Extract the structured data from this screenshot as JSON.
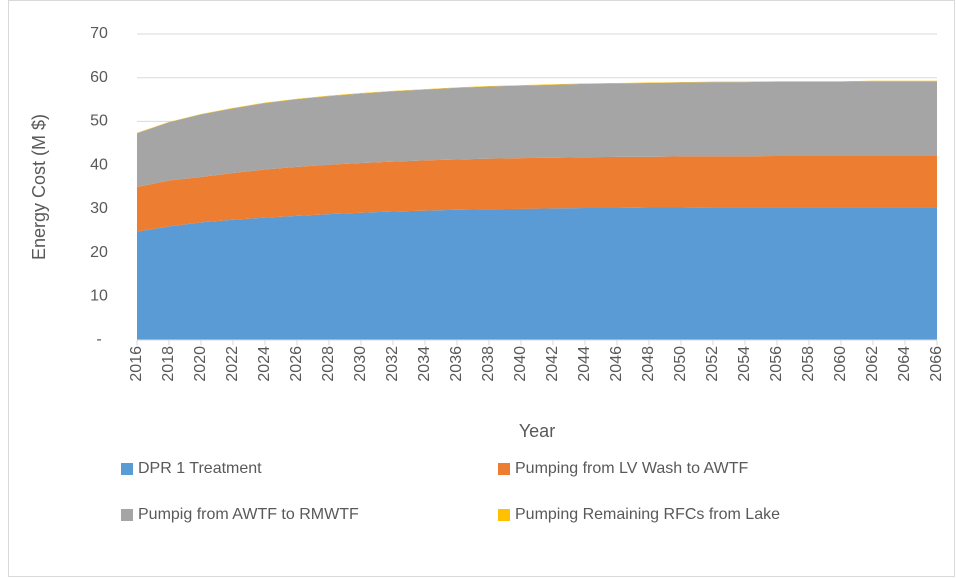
{
  "chart_data": {
    "type": "stacked_area",
    "ylabel": "Energy Cost (M $)",
    "xlabel": "Year",
    "x": [
      2016,
      2018,
      2020,
      2022,
      2024,
      2026,
      2028,
      2030,
      2032,
      2034,
      2036,
      2038,
      2040,
      2042,
      2044,
      2046,
      2048,
      2050,
      2052,
      2054,
      2056,
      2058,
      2060,
      2062,
      2064,
      2066
    ],
    "xlim": [
      2016,
      2066
    ],
    "xticks": [
      2016,
      2018,
      2020,
      2022,
      2024,
      2026,
      2028,
      2030,
      2032,
      2034,
      2036,
      2038,
      2040,
      2042,
      2044,
      2046,
      2048,
      2050,
      2052,
      2054,
      2056,
      2058,
      2060,
      2062,
      2064,
      2066
    ],
    "ylim": [
      0,
      70
    ],
    "yticks": [
      {
        "value": 0,
        "label": "-"
      },
      10,
      20,
      30,
      40,
      50,
      60,
      70
    ],
    "grid": true,
    "legend": "bottom",
    "series": [
      {
        "name": "DPR 1 Treatment",
        "color": "#5b9bd5",
        "values": [
          24.8,
          26.0,
          26.9,
          27.5,
          28.0,
          28.4,
          28.8,
          29.1,
          29.4,
          29.6,
          29.8,
          29.9,
          30.0,
          30.1,
          30.2,
          30.2,
          30.3,
          30.3,
          30.4,
          30.4,
          30.4,
          30.4,
          30.4,
          30.4,
          30.4,
          30.4
        ]
      },
      {
        "name": "Pumping from LV Wash to AWTF",
        "color": "#ed7d31",
        "values": [
          10.2,
          10.5,
          10.4,
          10.7,
          11.0,
          11.2,
          11.3,
          11.4,
          11.4,
          11.5,
          11.5,
          11.6,
          11.6,
          11.6,
          11.6,
          11.7,
          11.6,
          11.7,
          11.6,
          11.6,
          11.7,
          11.7,
          11.7,
          11.7,
          11.7,
          11.7
        ]
      },
      {
        "name": "Pumpig from AWTF to RMWTF",
        "color": "#a5a5a5",
        "values": [
          12.3,
          13.3,
          14.3,
          14.8,
          15.2,
          15.5,
          15.7,
          15.9,
          16.1,
          16.2,
          16.4,
          16.5,
          16.6,
          16.7,
          16.8,
          16.8,
          16.9,
          16.9,
          17.0,
          17.0,
          17.0,
          17.0,
          17.0,
          17.1,
          17.1,
          17.1
        ]
      },
      {
        "name": "Pumping Remaining RFCs from Lake",
        "color": "#ffc000",
        "values": [
          0.1,
          0.1,
          0.1,
          0.1,
          0.1,
          0.1,
          0.1,
          0.1,
          0.1,
          0.1,
          0.1,
          0.1,
          0.1,
          0.1,
          0.1,
          0.1,
          0.1,
          0.1,
          0.1,
          0.1,
          0.1,
          0.1,
          0.1,
          0.1,
          0.1,
          0.1
        ]
      }
    ]
  }
}
